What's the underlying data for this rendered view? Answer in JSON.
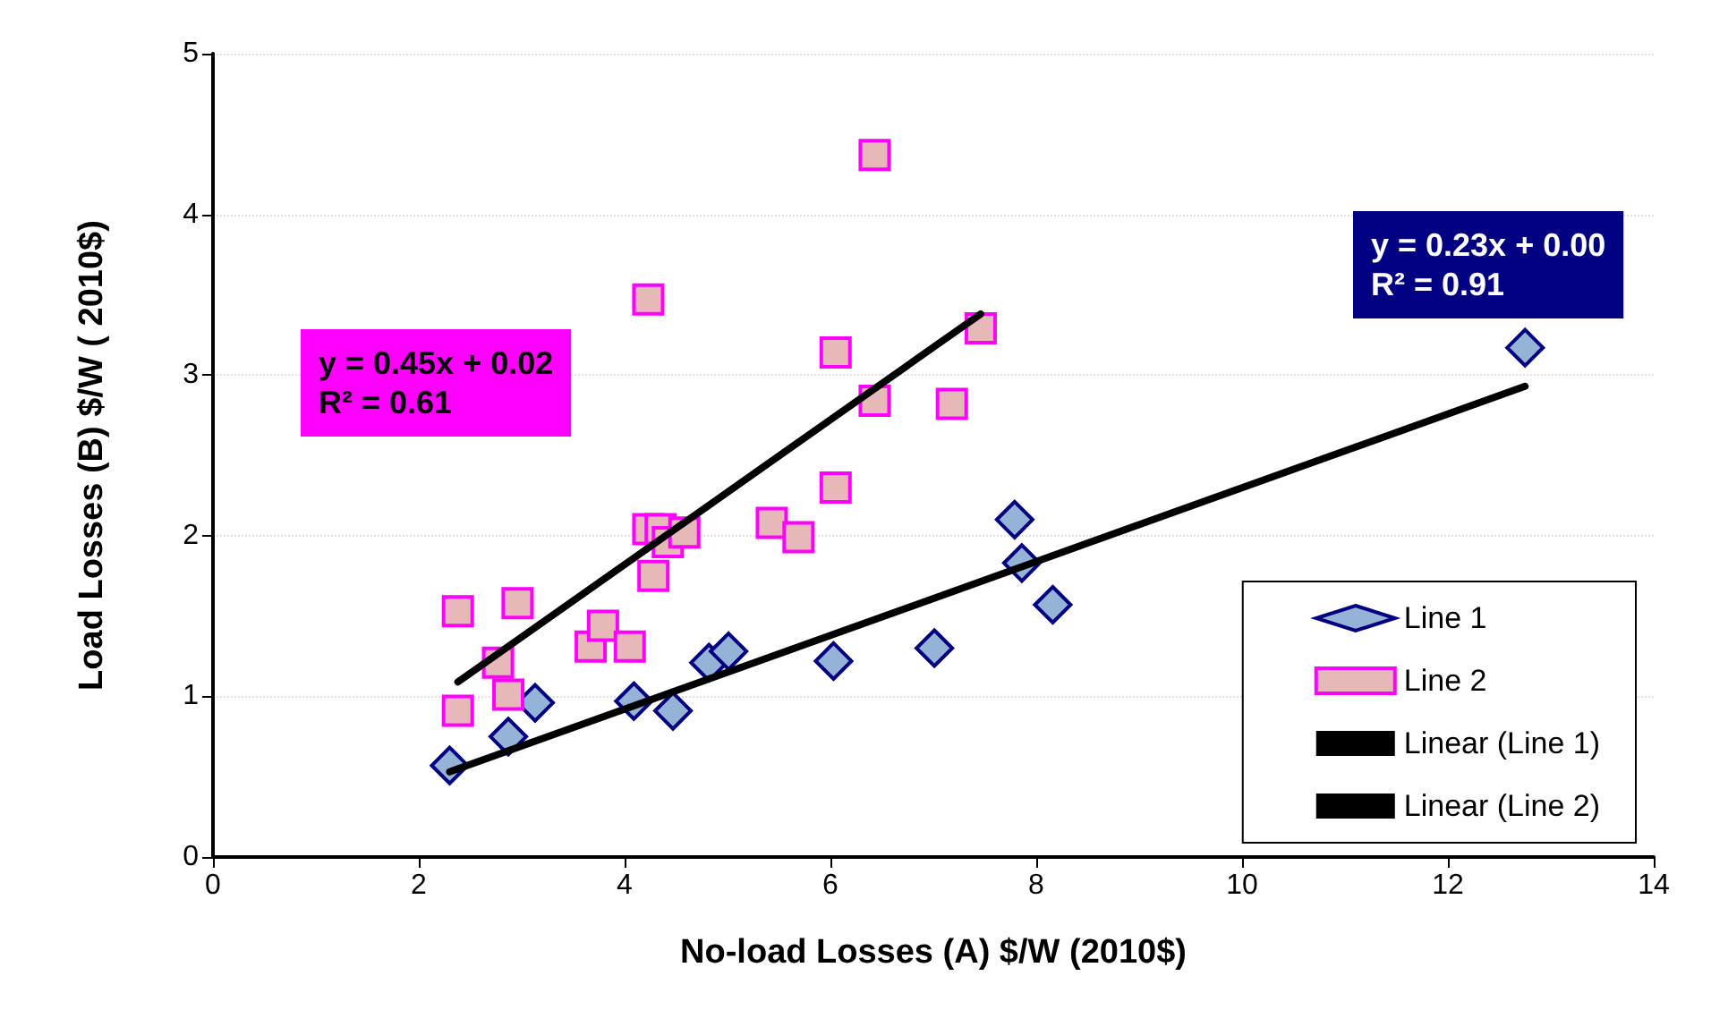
{
  "chart_data": {
    "type": "scatter",
    "xlabel": "No-load Losses (A) $/W (2010$)",
    "ylabel": "Load Losses (B) $/W ( 2010$)",
    "xlim": [
      0,
      14
    ],
    "xticks": [
      0,
      2,
      4,
      6,
      8,
      10,
      12,
      14
    ],
    "ylim": [
      0,
      5
    ],
    "yticks": [
      0,
      1,
      2,
      3,
      4,
      5
    ],
    "grid": "y",
    "legend": "bottom right",
    "annotations": [
      "y = 0.45x + 0.02\nR² = 0.61",
      "y = 0.23x + 0.00\nR² = 0.91"
    ],
    "series": [
      {
        "name": "Line 1",
        "marker": "diamond",
        "color": "#95b3d7",
        "x": [
          2.3,
          2.87,
          3.13,
          4.09,
          4.47,
          4.82,
          5.01,
          6.03,
          7.01,
          7.79,
          7.86,
          8.16,
          12.75
        ],
        "values": [
          0.57,
          0.75,
          0.96,
          0.97,
          0.91,
          1.21,
          1.28,
          1.22,
          1.3,
          2.1,
          1.83,
          1.57,
          3.17
        ]
      },
      {
        "name": "Line 2",
        "marker": "square",
        "color": "#e6b9b8",
        "x": [
          2.38,
          2.38,
          2.77,
          2.87,
          2.96,
          3.67,
          3.79,
          4.05,
          4.28,
          4.23,
          4.35,
          4.42,
          4.58,
          5.43,
          5.69,
          6.05,
          4.23,
          6.43,
          6.05,
          6.43,
          7.18,
          7.46
        ],
        "values": [
          1.53,
          0.91,
          1.21,
          1.01,
          1.58,
          1.31,
          1.44,
          1.31,
          1.75,
          2.04,
          2.04,
          1.96,
          2.02,
          2.08,
          1.99,
          2.3,
          3.47,
          4.37,
          3.14,
          2.84,
          2.82,
          3.29
        ]
      },
      {
        "name": "Linear (Line 1)",
        "type": "line",
        "marker": "none",
        "color": "#000000",
        "x": [
          2.3,
          12.75
        ],
        "values": [
          0.53,
          2.93
        ]
      },
      {
        "name": "Linear (Line 2)",
        "type": "line",
        "marker": "none",
        "color": "#000000",
        "x": [
          2.38,
          7.46
        ],
        "values": [
          1.09,
          3.38
        ]
      }
    ]
  }
}
